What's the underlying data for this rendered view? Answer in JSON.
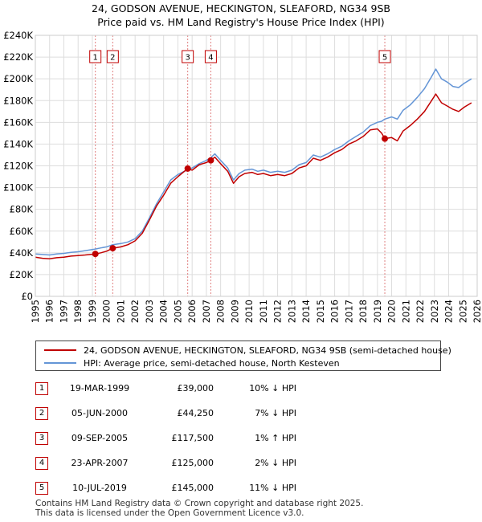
{
  "title": {
    "line1": "24, GODSON AVENUE, HECKINGTON, SLEAFORD, NG34 9SB",
    "line2": "Price paid vs. HM Land Registry's House Price Index (HPI)"
  },
  "colors": {
    "property": "#c00000",
    "hpi": "#6495d6",
    "grid": "#dddddd",
    "marker_line": "#e08080"
  },
  "chart_data": {
    "type": "line",
    "title": "Price paid vs. HM Land Registry's House Price Index (HPI)",
    "xlabel": "",
    "ylabel": "",
    "xlim": [
      1995,
      2026
    ],
    "ylim": [
      0,
      240000
    ],
    "grid": true,
    "x_ticks": [
      "1995",
      "1996",
      "1997",
      "1998",
      "1999",
      "2000",
      "2001",
      "2002",
      "2003",
      "2004",
      "2005",
      "2006",
      "2007",
      "2008",
      "2009",
      "2010",
      "2011",
      "2012",
      "2013",
      "2014",
      "2015",
      "2016",
      "2017",
      "2018",
      "2019",
      "2020",
      "2021",
      "2022",
      "2023",
      "2024",
      "2025",
      "2026"
    ],
    "y_ticks": [
      {
        "value": 0,
        "label": "£0"
      },
      {
        "value": 20000,
        "label": "£20K"
      },
      {
        "value": 40000,
        "label": "£40K"
      },
      {
        "value": 60000,
        "label": "£60K"
      },
      {
        "value": 80000,
        "label": "£80K"
      },
      {
        "value": 100000,
        "label": "£100K"
      },
      {
        "value": 120000,
        "label": "£120K"
      },
      {
        "value": 140000,
        "label": "£140K"
      },
      {
        "value": 160000,
        "label": "£160K"
      },
      {
        "value": 180000,
        "label": "£180K"
      },
      {
        "value": 200000,
        "label": "£200K"
      },
      {
        "value": 220000,
        "label": "£220K"
      },
      {
        "value": 240000,
        "label": "£240K"
      }
    ],
    "series": [
      {
        "name": "24, GODSON AVENUE, HECKINGTON, SLEAFORD, NG34 9SB (semi-detached house)",
        "color": "#c00000",
        "points": [
          [
            1995.0,
            36000
          ],
          [
            1995.5,
            35000
          ],
          [
            1996.0,
            34500
          ],
          [
            1996.5,
            35500
          ],
          [
            1997.0,
            36000
          ],
          [
            1997.5,
            37000
          ],
          [
            1998.0,
            37500
          ],
          [
            1998.5,
            38000
          ],
          [
            1999.21,
            39000
          ],
          [
            1999.6,
            40000
          ],
          [
            2000.0,
            41500
          ],
          [
            2000.43,
            44250
          ],
          [
            2001.0,
            45500
          ],
          [
            2001.5,
            47500
          ],
          [
            2002.0,
            51000
          ],
          [
            2002.5,
            58000
          ],
          [
            2003.0,
            70000
          ],
          [
            2003.5,
            83000
          ],
          [
            2004.0,
            93000
          ],
          [
            2004.5,
            104000
          ],
          [
            2005.0,
            110000
          ],
          [
            2005.69,
            117500
          ],
          [
            2006.0,
            116000
          ],
          [
            2006.5,
            121000
          ],
          [
            2007.0,
            123000
          ],
          [
            2007.31,
            125000
          ],
          [
            2007.6,
            128000
          ],
          [
            2008.0,
            122000
          ],
          [
            2008.5,
            115000
          ],
          [
            2008.9,
            104000
          ],
          [
            2009.3,
            110000
          ],
          [
            2009.7,
            113000
          ],
          [
            2010.2,
            114000
          ],
          [
            2010.6,
            112000
          ],
          [
            2011.0,
            113000
          ],
          [
            2011.5,
            111000
          ],
          [
            2012.0,
            112000
          ],
          [
            2012.5,
            111000
          ],
          [
            2013.0,
            113000
          ],
          [
            2013.5,
            118000
          ],
          [
            2014.0,
            120000
          ],
          [
            2014.5,
            127000
          ],
          [
            2015.0,
            125000
          ],
          [
            2015.5,
            128000
          ],
          [
            2016.0,
            132000
          ],
          [
            2016.5,
            135000
          ],
          [
            2017.0,
            140000
          ],
          [
            2017.5,
            143000
          ],
          [
            2018.0,
            147000
          ],
          [
            2018.5,
            153000
          ],
          [
            2019.0,
            154000
          ],
          [
            2019.3,
            150000
          ],
          [
            2019.52,
            145000
          ],
          [
            2020.0,
            146000
          ],
          [
            2020.4,
            143000
          ],
          [
            2020.8,
            152000
          ],
          [
            2021.3,
            157000
          ],
          [
            2021.8,
            163000
          ],
          [
            2022.3,
            170000
          ],
          [
            2022.8,
            180000
          ],
          [
            2023.1,
            186000
          ],
          [
            2023.5,
            178000
          ],
          [
            2023.9,
            175000
          ],
          [
            2024.3,
            172000
          ],
          [
            2024.7,
            170000
          ],
          [
            2025.1,
            174000
          ],
          [
            2025.6,
            178000
          ]
        ]
      },
      {
        "name": "HPI: Average price, semi-detached house, North Kesteven",
        "color": "#6495d6",
        "points": [
          [
            1995.0,
            39000
          ],
          [
            1995.5,
            38500
          ],
          [
            1996.0,
            38000
          ],
          [
            1996.5,
            39000
          ],
          [
            1997.0,
            39500
          ],
          [
            1997.5,
            40500
          ],
          [
            1998.0,
            41000
          ],
          [
            1998.5,
            42000
          ],
          [
            1999.21,
            43500
          ],
          [
            1999.6,
            44500
          ],
          [
            2000.0,
            45500
          ],
          [
            2000.43,
            47500
          ],
          [
            2001.0,
            48500
          ],
          [
            2001.5,
            50000
          ],
          [
            2002.0,
            53000
          ],
          [
            2002.5,
            60000
          ],
          [
            2003.0,
            72000
          ],
          [
            2003.5,
            85000
          ],
          [
            2004.0,
            96000
          ],
          [
            2004.5,
            107000
          ],
          [
            2005.0,
            112000
          ],
          [
            2005.69,
            116500
          ],
          [
            2006.0,
            118000
          ],
          [
            2006.5,
            122000
          ],
          [
            2007.0,
            125000
          ],
          [
            2007.31,
            127500
          ],
          [
            2007.6,
            131000
          ],
          [
            2008.0,
            125000
          ],
          [
            2008.5,
            118000
          ],
          [
            2008.9,
            107000
          ],
          [
            2009.3,
            113000
          ],
          [
            2009.7,
            116000
          ],
          [
            2010.2,
            117000
          ],
          [
            2010.6,
            115000
          ],
          [
            2011.0,
            116000
          ],
          [
            2011.5,
            114000
          ],
          [
            2012.0,
            115000
          ],
          [
            2012.5,
            114000
          ],
          [
            2013.0,
            116000
          ],
          [
            2013.5,
            121000
          ],
          [
            2014.0,
            123000
          ],
          [
            2014.5,
            130000
          ],
          [
            2015.0,
            128000
          ],
          [
            2015.5,
            131000
          ],
          [
            2016.0,
            135000
          ],
          [
            2016.5,
            138000
          ],
          [
            2017.0,
            143000
          ],
          [
            2017.5,
            147000
          ],
          [
            2018.0,
            151000
          ],
          [
            2018.5,
            157000
          ],
          [
            2019.0,
            160000
          ],
          [
            2019.3,
            161000
          ],
          [
            2019.52,
            163000
          ],
          [
            2020.0,
            165000
          ],
          [
            2020.4,
            163000
          ],
          [
            2020.8,
            171000
          ],
          [
            2021.3,
            176000
          ],
          [
            2021.8,
            183000
          ],
          [
            2022.3,
            191000
          ],
          [
            2022.8,
            202000
          ],
          [
            2023.1,
            209000
          ],
          [
            2023.5,
            200000
          ],
          [
            2023.9,
            197000
          ],
          [
            2024.3,
            193000
          ],
          [
            2024.7,
            192000
          ],
          [
            2025.1,
            196000
          ],
          [
            2025.6,
            200000
          ]
        ]
      }
    ],
    "sales": [
      {
        "num": "1",
        "x": 1999.21,
        "price": 39000
      },
      {
        "num": "2",
        "x": 2000.43,
        "price": 44250
      },
      {
        "num": "3",
        "x": 2005.69,
        "price": 117500
      },
      {
        "num": "4",
        "x": 2007.31,
        "price": 125000
      },
      {
        "num": "5",
        "x": 2019.52,
        "price": 145000
      }
    ]
  },
  "legend": {
    "property_label": "24, GODSON AVENUE, HECKINGTON, SLEAFORD, NG34 9SB (semi-detached house)",
    "hpi_label": "HPI: Average price, semi-detached house, North Kesteven"
  },
  "transactions": [
    {
      "num": "1",
      "date": "19-MAR-1999",
      "price": "£39,000",
      "hpi": "10% ↓ HPI"
    },
    {
      "num": "2",
      "date": "05-JUN-2000",
      "price": "£44,250",
      "hpi": "7% ↓ HPI"
    },
    {
      "num": "3",
      "date": "09-SEP-2005",
      "price": "£117,500",
      "hpi": "1% ↑ HPI"
    },
    {
      "num": "4",
      "date": "23-APR-2007",
      "price": "£125,000",
      "hpi": "2% ↓ HPI"
    },
    {
      "num": "5",
      "date": "10-JUL-2019",
      "price": "£145,000",
      "hpi": "11% ↓ HPI"
    }
  ],
  "footer": {
    "line1": "Contains HM Land Registry data © Crown copyright and database right 2025.",
    "line2": "This data is licensed under the Open Government Licence v3.0."
  }
}
